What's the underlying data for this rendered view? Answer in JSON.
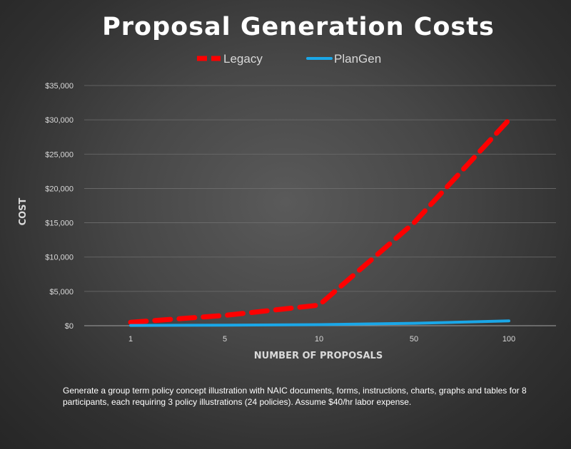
{
  "chart_data": {
    "type": "line",
    "title": "Proposal Generation Costs",
    "xlabel": "NUMBER OF PROPOSALS",
    "ylabel": "COST",
    "categories": [
      "1",
      "5",
      "10",
      "50",
      "100"
    ],
    "y_ticks": [
      "$0",
      "$5,000",
      "$10,000",
      "$15,000",
      "$20,000",
      "$25,000",
      "$30,000",
      "$35,000"
    ],
    "ylim": [
      0,
      35000
    ],
    "grid": true,
    "legend_position": "top",
    "series": [
      {
        "name": "Legacy",
        "values": [
          500,
          1500,
          3000,
          15000,
          30000
        ],
        "color": "#ff0000",
        "style": "dashed"
      },
      {
        "name": "PlanGen",
        "values": [
          40,
          80,
          160,
          350,
          700
        ],
        "color": "#1aa7e8",
        "style": "solid"
      }
    ]
  },
  "footnote": "Generate a group term policy concept illustration with NAIC documents, forms, instructions, charts, graphs and tables for 8 participants, each requiring 3 policy illustrations (24 policies). Assume $40/hr labor expense."
}
